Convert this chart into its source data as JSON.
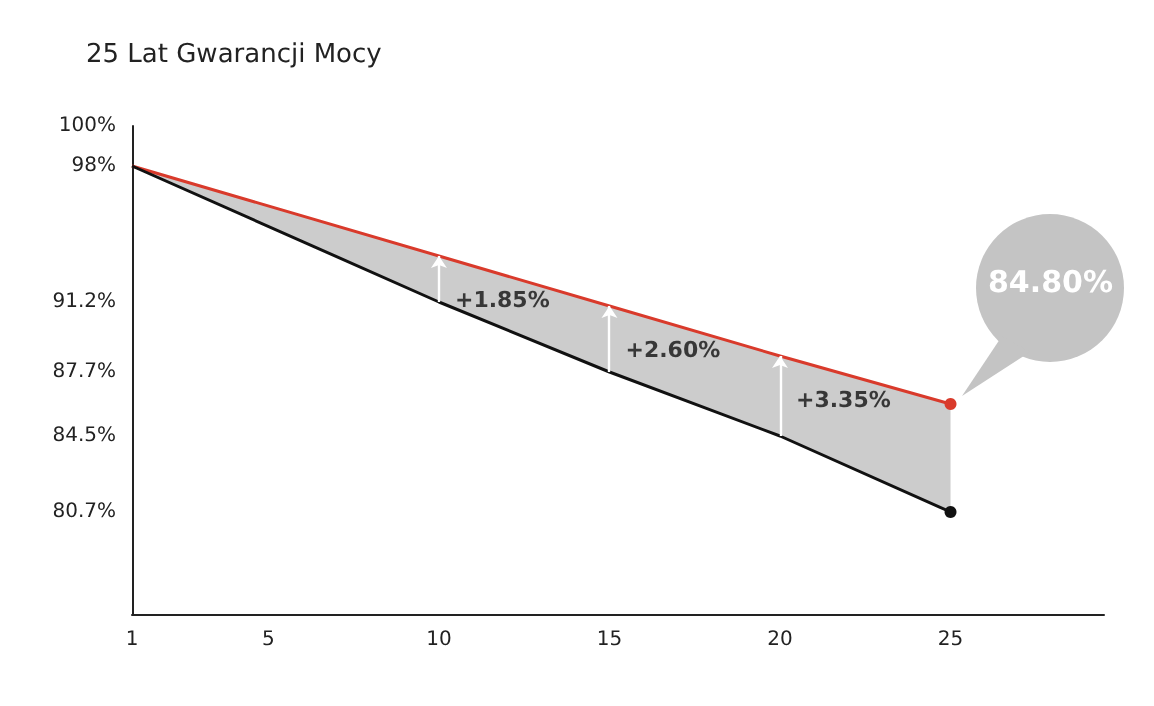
{
  "chart_data": {
    "type": "line",
    "title": "25 Lat Gwarancji Mocy",
    "x": [
      1,
      10,
      15,
      20,
      25
    ],
    "series": [
      {
        "color": "#d93a2b",
        "values": [
          98,
          93.5,
          91.0,
          88.5,
          86.1
        ],
        "lower": [
          98,
          91.2,
          87.7,
          84.5,
          80.7
        ],
        "upper": [
          98,
          93.5,
          91.0,
          88.5,
          86.1
        ]
      },
      {
        "color": "#111111",
        "values": [
          98,
          91.2,
          87.7,
          84.5,
          80.7
        ]
      }
    ],
    "xlim": [
      1,
      29.5
    ],
    "xticks": [
      1,
      5,
      10,
      15,
      20,
      25
    ],
    "ylim": [
      75.6,
      100
    ],
    "yticks": [
      {
        "value": 100,
        "label": "100%"
      },
      {
        "value": 98,
        "label": "98%"
      },
      {
        "value": 91.2,
        "label": "91.2%"
      },
      {
        "value": 87.7,
        "label": "87.7%"
      },
      {
        "value": 84.5,
        "label": "84.5%"
      },
      {
        "value": 80.7,
        "label": "80.7%"
      }
    ],
    "annotations": [
      {
        "text": "+1.85%",
        "x": 10,
        "y": 93.5
      },
      {
        "text": "+2.60%",
        "x": 15,
        "y": 91.0
      },
      {
        "text": "+3.35%",
        "x": 20,
        "y": 88.5
      },
      "84.80%"
    ],
    "grid": false
  }
}
